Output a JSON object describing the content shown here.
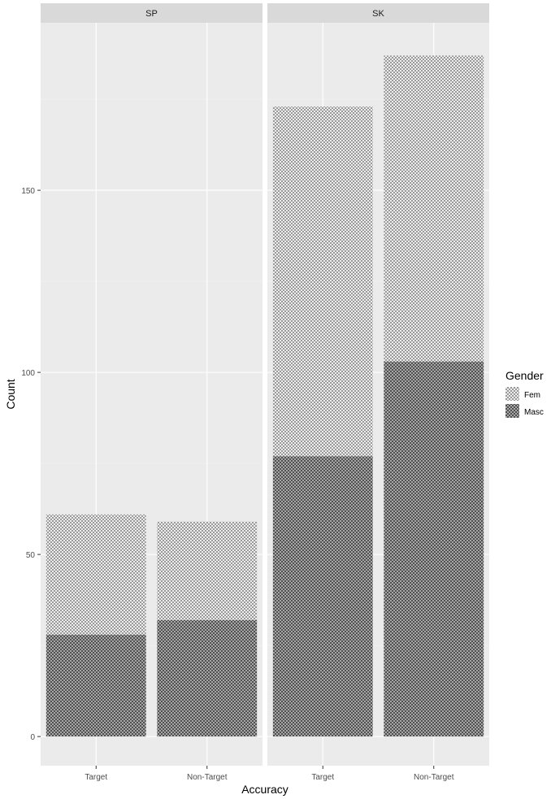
{
  "chart_data": {
    "type": "bar",
    "stacked": true,
    "xlabel": "Accuracy",
    "ylabel": "Count",
    "ylim": [
      -8,
      196
    ],
    "yticks": [
      0,
      50,
      100,
      150
    ],
    "grid": true,
    "categories": [
      "Target",
      "Non-Target"
    ],
    "legend": {
      "title": "Gender",
      "position": "right",
      "entries": [
        "Fem",
        "Masc"
      ]
    },
    "series_colors": {
      "Fem": "#bdbdbd",
      "Masc": "#7a7a7a"
    },
    "facets": [
      {
        "label": "SP",
        "series": [
          {
            "name": "Masc",
            "values": [
              28,
              32
            ]
          },
          {
            "name": "Fem",
            "values": [
              33,
              27
            ]
          }
        ]
      },
      {
        "label": "SK",
        "series": [
          {
            "name": "Masc",
            "values": [
              77,
              103
            ]
          },
          {
            "name": "Fem",
            "values": [
              96,
              84
            ]
          }
        ]
      }
    ]
  }
}
